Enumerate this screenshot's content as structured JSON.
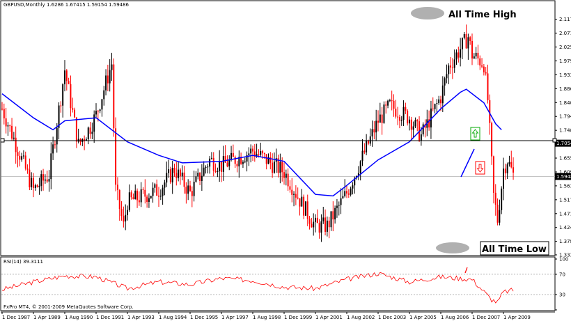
{
  "header": {
    "symbol": "GBPUSD,Monthly",
    "ohlc": "1.6286 1.67415 1.59154 1.59486"
  },
  "annotations": {
    "ath_label": "All Time High",
    "atl_label": "All Time Low"
  },
  "rsi_label": "RSI(14) 39.3111",
  "copyright": "FxPro MT4, © 2001-2009 MetaQuotes Software Corp.",
  "colors": {
    "bull": "#000000",
    "bear": "#ff0000",
    "ma": "#0000ff",
    "rsi": "#ff0000",
    "up_arrow": "#00aa00",
    "down_arrow": "#ff0000",
    "ellipse": "#b0b0b0"
  },
  "icons": {
    "up": "up-arrow-icon",
    "down": "down-arrow-icon"
  },
  "chart_data": {
    "type": "candlestick",
    "title": "GBPUSD,Monthly",
    "y_ticks": [
      "2.11790",
      "2.07170",
      "2.02550",
      "1.97930",
      "1.93310",
      "1.88690",
      "1.84070",
      "1.79450",
      "1.74830",
      "1.70210",
      "1.65590",
      "1.60970",
      "1.56350",
      "1.51730",
      "1.47110",
      "1.42490",
      "1.37870",
      "1.33390"
    ],
    "ylim": [
      1.3339,
      2.1379
    ],
    "x_ticks": [
      "1 Dec 1987",
      "1 Apr 1989",
      "1 Aug 1990",
      "1 Dec 1991",
      "1 Apr 1993",
      "1 Aug 1994",
      "1 Dec 1995",
      "1 Apr 1997",
      "1 Aug 1998",
      "1 Dec 1999",
      "1 Apr 2001",
      "1 Aug 2002",
      "1 Dec 2003",
      "1 Apr 2005",
      "1 Aug 2006",
      "1 Dec 2007",
      "1 Apr 2009"
    ],
    "horizontal_line": 1.70543,
    "price_markers": [
      "1.70543",
      "1.59486"
    ],
    "anchors": [
      {
        "x": "1 Dec 1987",
        "y": 1.82
      },
      {
        "x": "1 Jun 1988",
        "y": 1.72
      },
      {
        "x": "1 Apr 1989",
        "y": 1.55
      },
      {
        "x": "1 Dec 1989",
        "y": 1.6
      },
      {
        "x": "1 Jun 1990",
        "y": 1.86
      },
      {
        "x": "1 Aug 1990",
        "y": 1.95
      },
      {
        "x": "1 Mar 1991",
        "y": 1.7
      },
      {
        "x": "1 Sep 1991",
        "y": 1.76
      },
      {
        "x": "1 Dec 1991",
        "y": 1.8
      },
      {
        "x": "1 Aug 1992",
        "y": 1.97
      },
      {
        "x": "1 Oct 1992",
        "y": 1.55
      },
      {
        "x": "1 Feb 1993",
        "y": 1.43
      },
      {
        "x": "1 Apr 1993",
        "y": 1.51
      },
      {
        "x": "1 Aug 1994",
        "y": 1.55
      },
      {
        "x": "1 Feb 1995",
        "y": 1.6
      },
      {
        "x": "1 Apr 1995",
        "y": 1.62
      },
      {
        "x": "1 Dec 1995",
        "y": 1.54
      },
      {
        "x": "1 Oct 1996",
        "y": 1.65
      },
      {
        "x": "1 Apr 1997",
        "y": 1.63
      },
      {
        "x": "1 Aug 1998",
        "y": 1.68
      },
      {
        "x": "1 Dec 1999",
        "y": 1.61
      },
      {
        "x": "1 Dec 2000",
        "y": 1.47
      },
      {
        "x": "1 Apr 2001",
        "y": 1.43
      },
      {
        "x": "1 Oct 2001",
        "y": 1.43
      },
      {
        "x": "1 Aug 2002",
        "y": 1.54
      },
      {
        "x": "1 Dec 2003",
        "y": 1.78
      },
      {
        "x": "1 Jun 2004",
        "y": 1.83
      },
      {
        "x": "1 Apr 2005",
        "y": 1.79
      },
      {
        "x": "1 Oct 2005",
        "y": 1.73
      },
      {
        "x": "1 Aug 2006",
        "y": 1.86
      },
      {
        "x": "1 Dec 2006",
        "y": 1.96
      },
      {
        "x": "1 Oct 2007",
        "y": 2.06
      },
      {
        "x": "1 Dec 2007",
        "y": 2.0
      },
      {
        "x": "1 Jun 2008",
        "y": 1.97
      },
      {
        "x": "1 Aug 2008",
        "y": 1.85
      },
      {
        "x": "1 Nov 2008",
        "y": 1.53
      },
      {
        "x": "1 Jan 2009",
        "y": 1.45
      },
      {
        "x": "1 Apr 2009",
        "y": 1.62
      },
      {
        "x": "1 Jun 2009",
        "y": 1.65
      },
      {
        "x": "1 Sep 2009",
        "y": 1.6
      }
    ],
    "ma_line": [
      {
        "x": "1 Dec 1987",
        "y": 1.87
      },
      {
        "x": "1 Apr 1989",
        "y": 1.79
      },
      {
        "x": "1 Feb 1990",
        "y": 1.75
      },
      {
        "x": "1 Aug 1990",
        "y": 1.78
      },
      {
        "x": "1 Dec 1991",
        "y": 1.79
      },
      {
        "x": "1 Apr 1993",
        "y": 1.71
      },
      {
        "x": "1 Aug 1994",
        "y": 1.665
      },
      {
        "x": "1 Aug 1995",
        "y": 1.64
      },
      {
        "x": "1 Apr 1997",
        "y": 1.645
      },
      {
        "x": "1 Aug 1998",
        "y": 1.665
      },
      {
        "x": "1 Dec 1999",
        "y": 1.645
      },
      {
        "x": "1 Apr 2001",
        "y": 1.535
      },
      {
        "x": "1 Jan 2002",
        "y": 1.53
      },
      {
        "x": "1 Aug 2002",
        "y": 1.565
      },
      {
        "x": "1 Dec 2003",
        "y": 1.65
      },
      {
        "x": "1 Apr 2005",
        "y": 1.71
      },
      {
        "x": "1 Aug 2006",
        "y": 1.82
      },
      {
        "x": "1 Jun 2007",
        "y": 1.875
      },
      {
        "x": "1 Sep 2007",
        "y": 1.885
      },
      {
        "x": "1 Jun 2008",
        "y": 1.84
      },
      {
        "x": "1 Dec 2008",
        "y": 1.77
      },
      {
        "x": "1 Mar 2009",
        "y": 1.75
      }
    ],
    "rsi": {
      "label": "RSI(14) 39.3111",
      "levels": [
        "100",
        "70",
        "30",
        "0"
      ],
      "ylim": [
        0,
        100
      ],
      "points": [
        {
          "x": "1 Dec 1987",
          "y": 40
        },
        {
          "x": "1 Apr 1989",
          "y": 55
        },
        {
          "x": "1 Aug 1990",
          "y": 67
        },
        {
          "x": "1 Dec 1991",
          "y": 65
        },
        {
          "x": "1 Apr 1993",
          "y": 42
        },
        {
          "x": "1 Aug 1994",
          "y": 55
        },
        {
          "x": "1 Dec 1995",
          "y": 50
        },
        {
          "x": "1 Apr 1997",
          "y": 62
        },
        {
          "x": "1 Aug 1998",
          "y": 58
        },
        {
          "x": "1 Dec 1999",
          "y": 45
        },
        {
          "x": "1 Apr 2001",
          "y": 42
        },
        {
          "x": "1 Aug 2002",
          "y": 60
        },
        {
          "x": "1 Dec 2003",
          "y": 72
        },
        {
          "x": "1 Apr 2005",
          "y": 55
        },
        {
          "x": "1 Aug 2006",
          "y": 65
        },
        {
          "x": "1 Dec 2007",
          "y": 60
        },
        {
          "x": "1 Oct 2008",
          "y": 20
        },
        {
          "x": "1 Jan 2009",
          "y": 15
        },
        {
          "x": "1 Apr 2009",
          "y": 35
        },
        {
          "x": "1 Sep 2009",
          "y": 39
        }
      ]
    }
  }
}
